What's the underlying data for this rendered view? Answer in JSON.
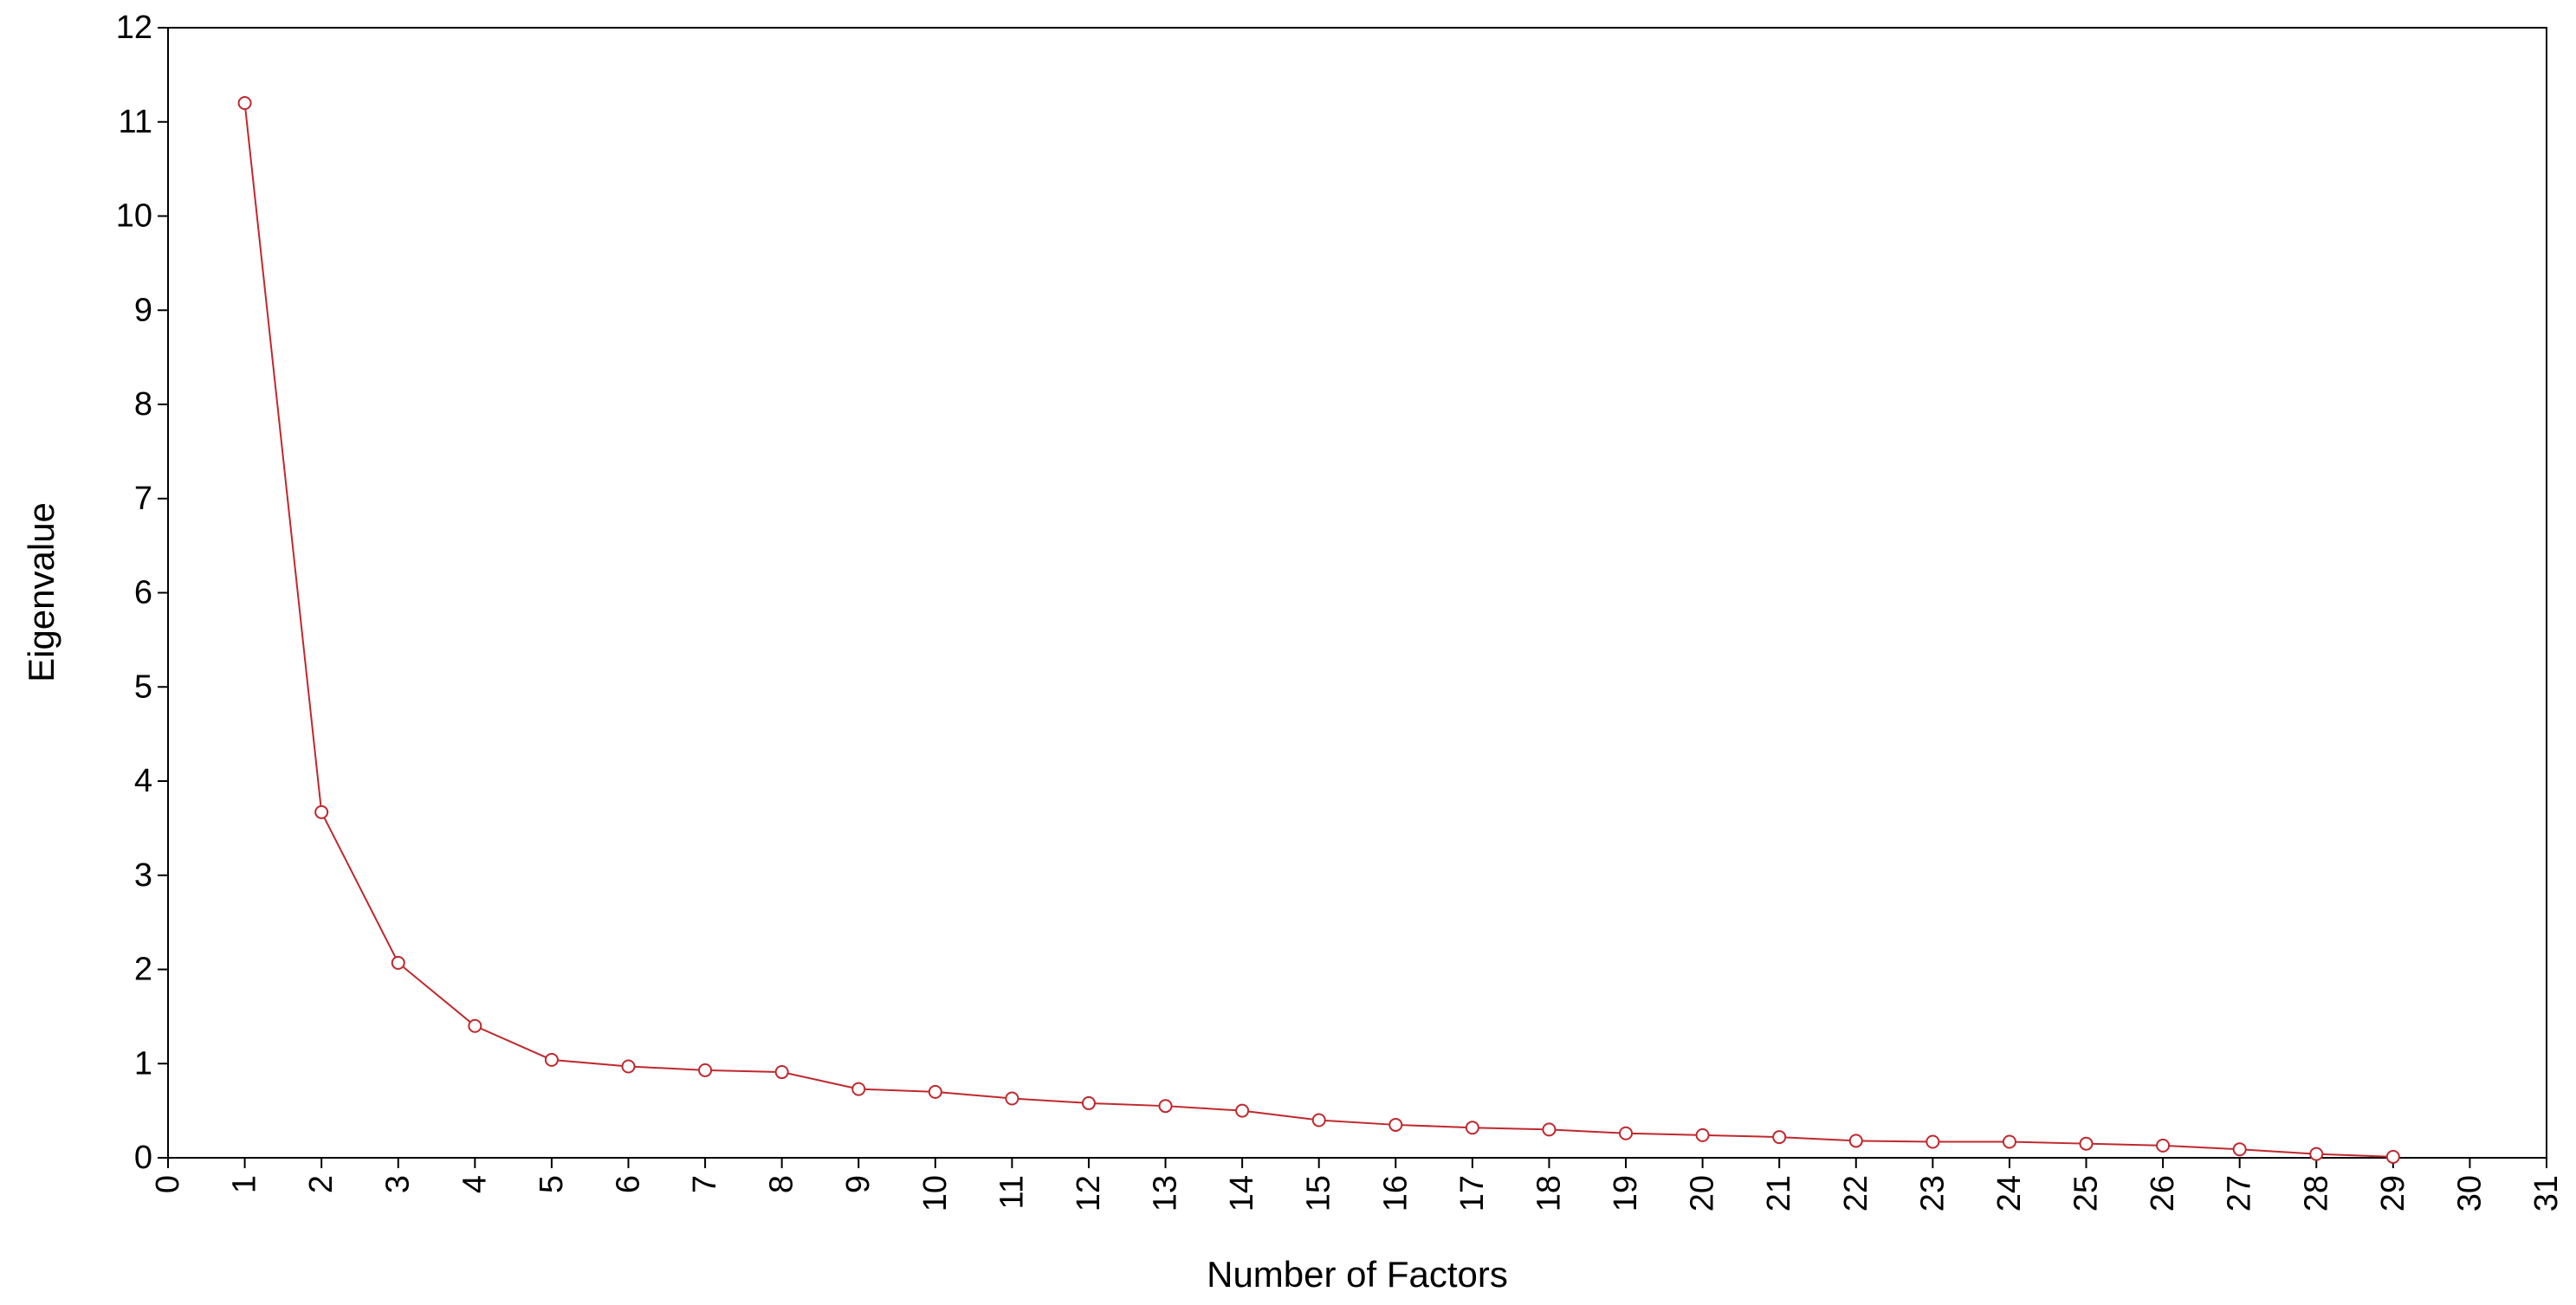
{
  "chart_data": {
    "type": "line",
    "title": "",
    "xlabel": "Number of Factors",
    "ylabel": "Eigenvalue",
    "xlim": [
      0,
      31
    ],
    "ylim": [
      0,
      12
    ],
    "x_ticks": [
      0,
      1,
      2,
      3,
      4,
      5,
      6,
      7,
      8,
      9,
      10,
      11,
      12,
      13,
      14,
      15,
      16,
      17,
      18,
      19,
      20,
      21,
      22,
      23,
      24,
      25,
      26,
      27,
      28,
      29,
      30,
      31
    ],
    "y_ticks": [
      0,
      1,
      2,
      3,
      4,
      5,
      6,
      7,
      8,
      9,
      10,
      11,
      12
    ],
    "grid": false,
    "legend": "none",
    "series": [
      {
        "color": "#c0282d",
        "marker": "circle",
        "x": [
          1,
          2,
          3,
          4,
          5,
          6,
          7,
          8,
          9,
          10,
          11,
          12,
          13,
          14,
          15,
          16,
          17,
          18,
          19,
          20,
          21,
          22,
          23,
          24,
          25,
          26,
          27,
          28,
          29
        ],
        "y": [
          11.2,
          3.67,
          2.07,
          1.4,
          1.04,
          0.97,
          0.93,
          0.91,
          0.73,
          0.7,
          0.63,
          0.58,
          0.55,
          0.5,
          0.4,
          0.35,
          0.32,
          0.3,
          0.26,
          0.24,
          0.22,
          0.18,
          0.17,
          0.17,
          0.15,
          0.13,
          0.09,
          0.04,
          0.01
        ]
      }
    ]
  }
}
